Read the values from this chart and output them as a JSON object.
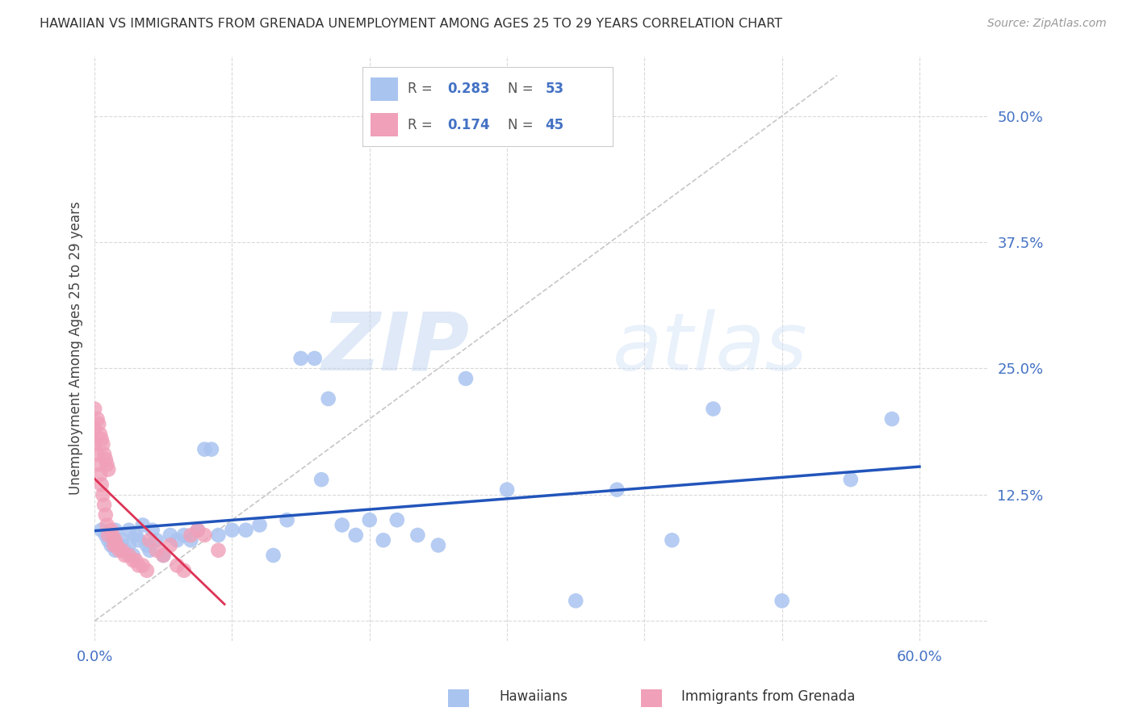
{
  "title": "HAWAIIAN VS IMMIGRANTS FROM GRENADA UNEMPLOYMENT AMONG AGES 25 TO 29 YEARS CORRELATION CHART",
  "source": "Source: ZipAtlas.com",
  "ylabel": "Unemployment Among Ages 25 to 29 years",
  "xlim": [
    0.0,
    0.65
  ],
  "ylim": [
    -0.02,
    0.56
  ],
  "yticks": [
    0.0,
    0.125,
    0.25,
    0.375,
    0.5
  ],
  "ytick_labels": [
    "",
    "12.5%",
    "25.0%",
    "37.5%",
    "50.0%"
  ],
  "xticks": [
    0.0,
    0.1,
    0.2,
    0.3,
    0.4,
    0.5,
    0.6
  ],
  "xtick_labels": [
    "0.0%",
    "",
    "",
    "",
    "",
    "",
    "60.0%"
  ],
  "grid_color": "#d0d0d0",
  "background_color": "#ffffff",
  "hawaiians_color": "#aac4f0",
  "grenada_color": "#f0a0b8",
  "trendline_hawaiians_color": "#2255bb",
  "trendline_grenada_color": "#dd3355",
  "diagonal_color": "#c0c0c0",
  "legend_r_hawaiians": "0.283",
  "legend_n_hawaiians": "53",
  "legend_r_grenada": "0.174",
  "legend_n_grenada": "45",
  "watermark_zip": "ZIP",
  "watermark_atlas": "atlas",
  "hawaiians_x": [
    0.005,
    0.008,
    0.01,
    0.012,
    0.015,
    0.015,
    0.018,
    0.02,
    0.022,
    0.025,
    0.025,
    0.028,
    0.03,
    0.032,
    0.035,
    0.038,
    0.04,
    0.042,
    0.045,
    0.05,
    0.055,
    0.06,
    0.065,
    0.07,
    0.075,
    0.08,
    0.085,
    0.09,
    0.1,
    0.11,
    0.12,
    0.13,
    0.14,
    0.15,
    0.16,
    0.165,
    0.17,
    0.18,
    0.19,
    0.2,
    0.21,
    0.22,
    0.235,
    0.25,
    0.27,
    0.3,
    0.35,
    0.38,
    0.42,
    0.45,
    0.5,
    0.55,
    0.58
  ],
  "hawaiians_y": [
    0.09,
    0.085,
    0.08,
    0.075,
    0.09,
    0.07,
    0.075,
    0.08,
    0.07,
    0.09,
    0.075,
    0.065,
    0.085,
    0.08,
    0.095,
    0.075,
    0.07,
    0.09,
    0.08,
    0.065,
    0.085,
    0.08,
    0.085,
    0.08,
    0.09,
    0.17,
    0.17,
    0.085,
    0.09,
    0.09,
    0.095,
    0.065,
    0.1,
    0.26,
    0.26,
    0.14,
    0.22,
    0.095,
    0.085,
    0.1,
    0.08,
    0.1,
    0.085,
    0.075,
    0.24,
    0.13,
    0.02,
    0.13,
    0.08,
    0.21,
    0.02,
    0.14,
    0.2
  ],
  "grenada_x": [
    0.0,
    0.0,
    0.0,
    0.002,
    0.002,
    0.003,
    0.003,
    0.004,
    0.004,
    0.005,
    0.005,
    0.006,
    0.006,
    0.007,
    0.007,
    0.008,
    0.008,
    0.009,
    0.009,
    0.01,
    0.01,
    0.012,
    0.013,
    0.014,
    0.015,
    0.016,
    0.018,
    0.02,
    0.022,
    0.025,
    0.028,
    0.03,
    0.032,
    0.035,
    0.038,
    0.04,
    0.045,
    0.05,
    0.055,
    0.06,
    0.065,
    0.07,
    0.075,
    0.08,
    0.09
  ],
  "grenada_y": [
    0.21,
    0.19,
    0.175,
    0.2,
    0.165,
    0.195,
    0.155,
    0.185,
    0.145,
    0.18,
    0.135,
    0.175,
    0.125,
    0.165,
    0.115,
    0.16,
    0.105,
    0.155,
    0.095,
    0.15,
    0.085,
    0.09,
    0.085,
    0.075,
    0.08,
    0.075,
    0.07,
    0.07,
    0.065,
    0.065,
    0.06,
    0.06,
    0.055,
    0.055,
    0.05,
    0.08,
    0.07,
    0.065,
    0.075,
    0.055,
    0.05,
    0.085,
    0.09,
    0.085,
    0.07
  ]
}
